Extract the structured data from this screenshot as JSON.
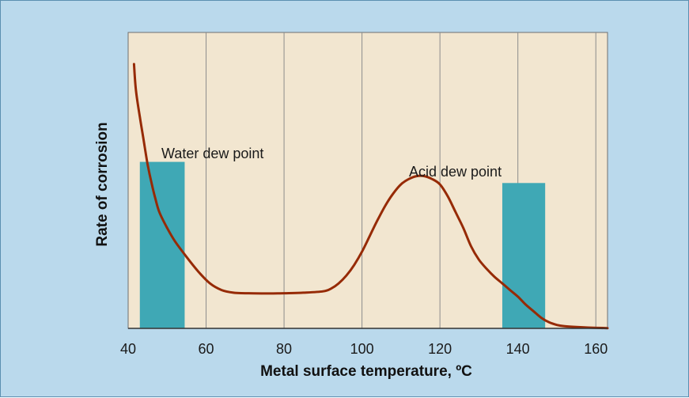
{
  "colors": {
    "background": "#bad9ec",
    "plot_area": "#f2e6d0",
    "grid": "#8c8c8c",
    "curve": "#962a05",
    "dew_point_bar": "#3fa8b5"
  },
  "chart_data": {
    "type": "line",
    "title": "",
    "xlabel": "Metal surface temperature, ºC",
    "ylabel": "Rate of corrosion",
    "xlim": [
      40,
      163
    ],
    "ylim": [
      0,
      100
    ],
    "x_ticks": [
      40,
      60,
      80,
      100,
      120,
      140,
      160
    ],
    "x_tick_labels": [
      "40",
      "60",
      "80",
      "100",
      "120",
      "140",
      "160"
    ],
    "y_ticks_shown": false,
    "grid": "vertical",
    "series": [
      {
        "name": "",
        "x": [
          41.5,
          42,
          43,
          44,
          45,
          46,
          47,
          48,
          50,
          52,
          55,
          58,
          61,
          64,
          67,
          70,
          75,
          80,
          85,
          90,
          92,
          94,
          96,
          98,
          100,
          102,
          104,
          106,
          108,
          110,
          112,
          114,
          116,
          118,
          120,
          122,
          124,
          126,
          128,
          130,
          132,
          134,
          136,
          138,
          140,
          142,
          144,
          146,
          148,
          150,
          152,
          155,
          158,
          163
        ],
        "y": [
          100,
          90,
          80,
          71,
          62,
          55,
          49,
          44,
          38,
          33,
          27,
          21.5,
          17,
          14.5,
          13.5,
          13.3,
          13.2,
          13.3,
          13.5,
          14,
          15,
          17,
          20,
          24,
          29,
          35,
          41,
          46.5,
          51,
          54.5,
          56.5,
          57.6,
          57.6,
          56.5,
          54.5,
          50,
          44,
          38,
          31,
          26,
          22.5,
          19.5,
          17,
          14.5,
          12,
          9,
          6.5,
          4,
          2.3,
          1.3,
          0.8,
          0.5,
          0.3,
          0.1
        ]
      }
    ],
    "highlights": [
      {
        "label": "Water dew point",
        "x_from": 43,
        "x_to": 54.5,
        "height": 63
      },
      {
        "label": "Acid dew point",
        "x_from": 136,
        "x_to": 147,
        "height": 55
      }
    ]
  }
}
